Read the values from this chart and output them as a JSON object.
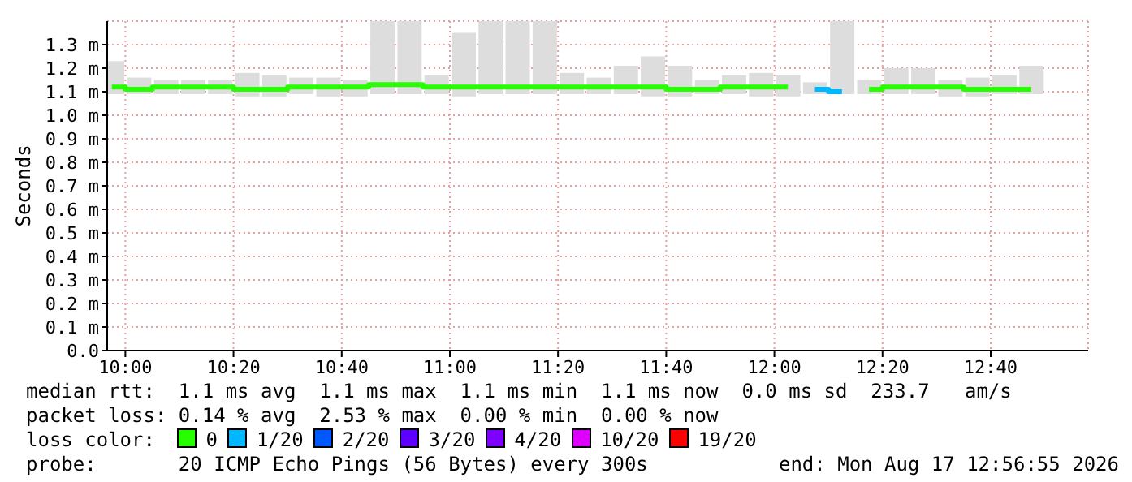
{
  "chart_data": {
    "type": "step",
    "ylabel": "Seconds",
    "legend_title": "loss color:",
    "legend": "bottom",
    "grid": true,
    "x": [
      9.9583,
      10.0417,
      10.125,
      10.2083,
      10.2917,
      10.375,
      10.4583,
      10.5417,
      10.625,
      10.7083,
      10.7917,
      10.875,
      10.9583,
      11.0417,
      11.125,
      11.2083,
      11.2917,
      11.375,
      11.4583,
      11.5417,
      11.625,
      11.7083,
      11.7917,
      11.875,
      11.9583,
      12.0417,
      12.125,
      12.2083,
      12.2917,
      12.375,
      12.4583,
      12.5417,
      12.625,
      12.7083,
      12.7917
    ],
    "series": [
      {
        "type": "bar",
        "color": "#dddddd",
        "base": [
          1.09,
          1.09,
          1.09,
          1.09,
          1.09,
          1.08,
          1.08,
          1.09,
          1.08,
          1.08,
          1.09,
          1.09,
          1.09,
          1.08,
          1.09,
          1.09,
          1.09,
          1.09,
          1.09,
          1.09,
          1.08,
          1.08,
          1.09,
          1.09,
          1.08,
          1.08,
          1.09,
          1.09,
          1.09,
          1.09,
          1.09,
          1.08,
          1.08,
          1.09,
          1.09
        ],
        "values": [
          0.14,
          0.07,
          0.06,
          0.06,
          0.06,
          0.1,
          0.09,
          0.07,
          0.08,
          0.07,
          0.31,
          0.31,
          0.08,
          0.27,
          0.31,
          0.31,
          0.31,
          0.09,
          0.07,
          0.12,
          0.17,
          0.13,
          0.06,
          0.08,
          0.1,
          0.09,
          0.05,
          0.31,
          0.06,
          0.11,
          0.11,
          0.07,
          0.08,
          0.08,
          0.12
        ]
      },
      {
        "name": "0",
        "color": "#26ff00",
        "values": [
          1.12,
          1.11,
          1.12,
          1.12,
          1.12,
          1.11,
          1.11,
          1.12,
          1.12,
          1.12,
          1.13,
          1.13,
          1.12,
          1.12,
          1.12,
          1.12,
          1.12,
          1.12,
          1.12,
          1.12,
          1.12,
          1.11,
          1.11,
          1.12,
          1.12,
          1.12,
          null,
          null,
          1.11,
          1.12,
          1.12,
          1.12,
          1.11,
          1.11,
          1.11
        ]
      },
      {
        "name": "1/20",
        "color": "#00b8ff",
        "values": [
          null,
          null,
          null,
          null,
          null,
          null,
          null,
          null,
          null,
          null,
          null,
          null,
          null,
          null,
          null,
          null,
          null,
          null,
          null,
          null,
          null,
          null,
          null,
          null,
          null,
          null,
          1.11,
          1.1,
          null,
          null,
          null,
          null,
          null,
          null,
          null
        ]
      },
      {
        "name": "2/20",
        "color": "#0059ff",
        "values": [
          null,
          null,
          null,
          null,
          null,
          null,
          null,
          null,
          null,
          null,
          null,
          null,
          null,
          null,
          null,
          null,
          null,
          null,
          null,
          null,
          null,
          null,
          null,
          null,
          null,
          null,
          null,
          null,
          null,
          null,
          null,
          null,
          null,
          null,
          null
        ]
      },
      {
        "name": "3/20",
        "color": "#5e00ff",
        "values": [
          null,
          null,
          null,
          null,
          null,
          null,
          null,
          null,
          null,
          null,
          null,
          null,
          null,
          null,
          null,
          null,
          null,
          null,
          null,
          null,
          null,
          null,
          null,
          null,
          null,
          null,
          null,
          null,
          null,
          null,
          null,
          null,
          null,
          null,
          null
        ]
      },
      {
        "name": "4/20",
        "color": "#7e00ff",
        "values": [
          null,
          null,
          null,
          null,
          null,
          null,
          null,
          null,
          null,
          null,
          null,
          null,
          null,
          null,
          null,
          null,
          null,
          null,
          null,
          null,
          null,
          null,
          null,
          null,
          null,
          null,
          null,
          null,
          null,
          null,
          null,
          null,
          null,
          null,
          null
        ]
      },
      {
        "name": "10/20",
        "color": "#dd00ff",
        "values": [
          null,
          null,
          null,
          null,
          null,
          null,
          null,
          null,
          null,
          null,
          null,
          null,
          null,
          null,
          null,
          null,
          null,
          null,
          null,
          null,
          null,
          null,
          null,
          null,
          null,
          null,
          null,
          null,
          null,
          null,
          null,
          null,
          null,
          null,
          null
        ]
      },
      {
        "name": "19/20",
        "color": "#ff0000",
        "values": [
          null,
          null,
          null,
          null,
          null,
          null,
          null,
          null,
          null,
          null,
          null,
          null,
          null,
          null,
          null,
          null,
          null,
          null,
          null,
          null,
          null,
          null,
          null,
          null,
          null,
          null,
          null,
          null,
          null,
          null,
          null,
          null,
          null,
          null,
          null
        ]
      }
    ],
    "xlim": [
      9.944,
      12.967
    ],
    "xticks": [
      {
        "value": 10,
        "label": "10:00"
      },
      {
        "value": 10.3333,
        "label": "10:20"
      },
      {
        "value": 10.6667,
        "label": "10:40"
      },
      {
        "value": 11,
        "label": "11:00"
      },
      {
        "value": 11.3333,
        "label": "11:20"
      },
      {
        "value": 11.6667,
        "label": "11:40"
      },
      {
        "value": 12,
        "label": "12:00"
      },
      {
        "value": 12.3333,
        "label": "12:20"
      },
      {
        "value": 12.6667,
        "label": "12:40"
      }
    ],
    "ylim": [
      0,
      1.4
    ],
    "yticks": [
      {
        "value": 0,
        "label": "0.0"
      },
      {
        "value": 0.1,
        "label": "0.1 m"
      },
      {
        "value": 0.2,
        "label": "0.2 m"
      },
      {
        "value": 0.3,
        "label": "0.3 m"
      },
      {
        "value": 0.4,
        "label": "0.4 m"
      },
      {
        "value": 0.5,
        "label": "0.5 m"
      },
      {
        "value": 0.6,
        "label": "0.6 m"
      },
      {
        "value": 0.7,
        "label": "0.7 m"
      },
      {
        "value": 0.8,
        "label": "0.8 m"
      },
      {
        "value": 0.9,
        "label": "0.9 m"
      },
      {
        "value": 1.0,
        "label": "1.0 m"
      },
      {
        "value": 1.1,
        "label": "1.1 m"
      },
      {
        "value": 1.2,
        "label": "1.2 m"
      },
      {
        "value": 1.3,
        "label": "1.3 m"
      }
    ],
    "annotations": [
      "median rtt:  1.1 ms avg  1.1 ms max  1.1 ms min  1.1 ms now  0.0 ms sd  233.7   am/s",
      "packet loss: 0.14 % avg  2.53 % max  0.00 % min  0.00 % now",
      "probe:       20 ICMP Echo Pings (56 Bytes) every 300s",
      "end: Mon Aug 17 12:56:55 2026"
    ]
  }
}
